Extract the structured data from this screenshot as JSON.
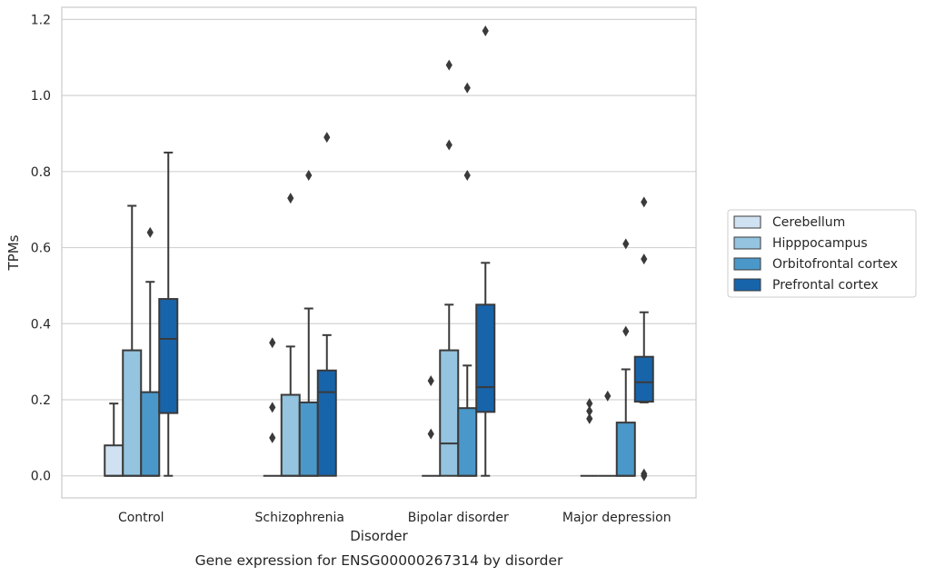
{
  "chart_data": {
    "type": "box",
    "caption": "Gene expression for ENSG00000267314 by disorder",
    "xlabel": "Disorder",
    "ylabel": "TPMs",
    "ylim": [
      -0.058,
      1.232
    ],
    "yticks": [
      0.0,
      0.2,
      0.4,
      0.6,
      0.8,
      1.0,
      1.2
    ],
    "ytick_labels": [
      "0.0",
      "0.2",
      "0.4",
      "0.6",
      "0.8",
      "1.0",
      "1.2"
    ],
    "grid": "horizontal",
    "legend_position": "right",
    "categories": [
      "Control",
      "Schizophrenia",
      "Bipolar disorder",
      "Major depression"
    ],
    "series": [
      {
        "name": "Cerebellum",
        "color": "#d0e1f2",
        "boxes": [
          {
            "q1": 0.0,
            "median": 0.0,
            "q3": 0.08,
            "whislo": 0.0,
            "whishi": 0.19,
            "fliers": []
          },
          {
            "q1": 0.0,
            "median": 0.0,
            "q3": 0.0,
            "whislo": 0.0,
            "whishi": 0.0,
            "fliers": [
              0.35,
              0.18,
              0.1
            ]
          },
          {
            "q1": 0.0,
            "median": 0.0,
            "q3": 0.0,
            "whislo": 0.0,
            "whishi": 0.0,
            "fliers": [
              0.25,
              0.11
            ]
          },
          {
            "q1": 0.0,
            "median": 0.0,
            "q3": 0.0,
            "whislo": 0.0,
            "whishi": 0.0,
            "fliers": [
              0.19,
              0.17,
              0.15
            ]
          }
        ]
      },
      {
        "name": "Hipppocampus",
        "color": "#94c4df",
        "boxes": [
          {
            "q1": 0.0,
            "median": 0.0,
            "q3": 0.33,
            "whislo": 0.0,
            "whishi": 0.71,
            "fliers": []
          },
          {
            "q1": 0.0,
            "median": 0.0,
            "q3": 0.213,
            "whislo": 0.0,
            "whishi": 0.34,
            "fliers": [
              0.73
            ]
          },
          {
            "q1": 0.0,
            "median": 0.085,
            "q3": 0.33,
            "whislo": 0.0,
            "whishi": 0.45,
            "fliers": [
              1.08,
              0.87
            ]
          },
          {
            "q1": 0.0,
            "median": 0.0,
            "q3": 0.0,
            "whislo": 0.0,
            "whishi": 0.0,
            "fliers": [
              0.21
            ]
          }
        ]
      },
      {
        "name": "Orbitofrontal cortex",
        "color": "#4a98c9",
        "boxes": [
          {
            "q1": 0.0,
            "median": 0.0,
            "q3": 0.22,
            "whislo": 0.0,
            "whishi": 0.51,
            "fliers": [
              0.64
            ]
          },
          {
            "q1": 0.0,
            "median": 0.0,
            "q3": 0.193,
            "whislo": 0.0,
            "whishi": 0.44,
            "fliers": [
              0.79
            ]
          },
          {
            "q1": 0.0,
            "median": 0.0,
            "q3": 0.178,
            "whislo": 0.0,
            "whishi": 0.29,
            "fliers": [
              1.02,
              0.79
            ]
          },
          {
            "q1": 0.0,
            "median": 0.0,
            "q3": 0.14,
            "whislo": 0.0,
            "whishi": 0.28,
            "fliers": [
              0.61,
              0.38
            ]
          }
        ]
      },
      {
        "name": "Prefrontal cortex",
        "color": "#1764ab",
        "boxes": [
          {
            "q1": 0.165,
            "median": 0.36,
            "q3": 0.465,
            "whislo": 0.0,
            "whishi": 0.85,
            "fliers": []
          },
          {
            "q1": 0.0,
            "median": 0.22,
            "q3": 0.277,
            "whislo": 0.0,
            "whishi": 0.37,
            "fliers": [
              0.89
            ]
          },
          {
            "q1": 0.168,
            "median": 0.233,
            "q3": 0.45,
            "whislo": 0.0,
            "whishi": 0.56,
            "fliers": [
              1.17
            ]
          },
          {
            "q1": 0.195,
            "median": 0.246,
            "q3": 0.313,
            "whislo": 0.193,
            "whishi": 0.43,
            "fliers": [
              0.72,
              0.57,
              0.005,
              0.0
            ]
          }
        ]
      }
    ]
  }
}
